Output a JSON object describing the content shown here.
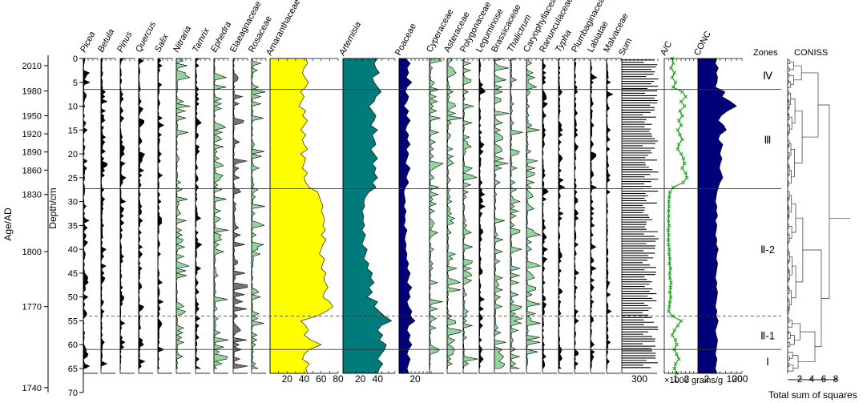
{
  "chart_data": {
    "type": "area",
    "title": "",
    "y_axis_depth": {
      "label": "Depth/cm",
      "range": [
        0,
        70
      ],
      "ticks": [
        0,
        5,
        10,
        15,
        20,
        25,
        30,
        35,
        40,
        45,
        50,
        55,
        60,
        65,
        70
      ]
    },
    "y_axis_age": {
      "label": "Age/AD",
      "ticks": [
        {
          "age": "2010",
          "depth": 1.5
        },
        {
          "age": "1980",
          "depth": 6.8
        },
        {
          "age": "1950",
          "depth": 12.0
        },
        {
          "age": "1920",
          "depth": 15.8
        },
        {
          "age": "1890",
          "depth": 19.6
        },
        {
          "age": "1860",
          "depth": 23.4
        },
        {
          "age": "1830",
          "depth": 28.5
        },
        {
          "age": "1800",
          "depth": 40.5
        },
        {
          "age": "1770",
          "depth": 52.0
        },
        {
          "age": "1740",
          "depth": 69.0
        }
      ]
    },
    "depths": [
      0,
      1,
      2,
      3,
      4,
      5,
      6,
      7,
      8,
      9,
      10,
      11,
      12,
      13,
      14,
      15,
      16,
      17,
      18,
      19,
      20,
      21,
      22,
      23,
      24,
      25,
      26,
      27,
      28,
      29,
      30,
      31,
      32,
      33,
      34,
      35,
      36,
      37,
      38,
      39,
      40,
      41,
      42,
      43,
      44,
      45,
      46,
      47,
      48,
      49,
      50,
      51,
      52,
      53,
      54,
      55,
      56,
      57,
      58,
      59,
      60,
      61,
      62,
      63,
      64,
      65,
      66
    ],
    "series": [
      {
        "name": "Amaranthaceae",
        "italic": false,
        "color": "#ffff00",
        "ticks": [
          20,
          40,
          60,
          80
        ],
        "xmax": 80,
        "values": [
          42,
          44,
          40,
          38,
          41,
          45,
          42,
          36,
          40,
          37,
          34,
          42,
          38,
          44,
          40,
          36,
          42,
          38,
          40,
          44,
          36,
          42,
          40,
          38,
          44,
          40,
          42,
          46,
          56,
          58,
          60,
          62,
          60,
          63,
          64,
          62,
          65,
          60,
          66,
          62,
          60,
          58,
          64,
          62,
          60,
          66,
          63,
          65,
          68,
          64,
          62,
          70,
          74,
          66,
          55,
          36,
          42,
          45,
          40,
          48,
          60,
          46,
          40,
          38,
          46,
          42,
          44
        ]
      },
      {
        "name": "Artemisia",
        "italic": true,
        "color": "#007b7b",
        "ticks": [
          20,
          40
        ],
        "xmax": 60,
        "values": [
          40,
          36,
          38,
          42,
          34,
          36,
          40,
          44,
          38,
          36,
          30,
          34,
          38,
          36,
          32,
          40,
          34,
          36,
          38,
          32,
          36,
          40,
          34,
          38,
          36,
          40,
          34,
          38,
          30,
          26,
          24,
          25,
          22,
          24,
          23,
          25,
          22,
          26,
          24,
          22,
          28,
          26,
          24,
          30,
          28,
          34,
          32,
          36,
          30,
          34,
          28,
          40,
          36,
          42,
          48,
          56,
          44,
          40,
          46,
          42,
          50,
          48,
          44,
          40,
          46,
          42,
          40
        ]
      },
      {
        "name": "Poaceae",
        "italic": false,
        "color": "#00007a",
        "ticks": [
          20
        ],
        "xmax": 40,
        "values": [
          8,
          14,
          10,
          12,
          9,
          16,
          10,
          8,
          12,
          10,
          6,
          12,
          9,
          14,
          10,
          8,
          12,
          10,
          14,
          9,
          12,
          10,
          8,
          14,
          11,
          9,
          12,
          8,
          6,
          7,
          8,
          6,
          9,
          7,
          8,
          6,
          10,
          8,
          7,
          9,
          8,
          10,
          9,
          12,
          10,
          14,
          12,
          10,
          16,
          12,
          14,
          10,
          12,
          16,
          14,
          20,
          12,
          10,
          14,
          12,
          16,
          12,
          10,
          14,
          12,
          10,
          12
        ]
      },
      {
        "name": "A/C",
        "italic": false,
        "color": "#1aa31a",
        "ticks": [
          1,
          2
        ],
        "xmax": 3,
        "values": [
          0.7,
          0.8,
          0.6,
          0.9,
          0.7,
          1.0,
          0.8,
          1.6,
          1.9,
          1.5,
          1.8,
          1.4,
          1.6,
          1.3,
          1.5,
          1.2,
          1.4,
          1.6,
          1.3,
          1.2,
          1.5,
          1.7,
          1.8,
          1.6,
          1.9,
          2.0,
          1.7,
          0.8,
          0.5,
          0.45,
          0.4,
          0.42,
          0.38,
          0.4,
          0.37,
          0.42,
          0.35,
          0.4,
          0.36,
          0.38,
          0.45,
          0.42,
          0.5,
          0.45,
          0.55,
          0.48,
          0.5,
          0.6,
          0.55,
          0.5,
          0.58,
          0.5,
          0.45,
          0.4,
          0.7,
          1.5,
          1.2,
          0.9,
          0.7,
          1.0,
          1.1,
          0.9,
          1.1,
          1.3,
          1.0,
          0.9,
          1.1
        ]
      },
      {
        "name": "CONC",
        "italic": false,
        "color": "#00007a",
        "ticks": [
          2,
          100,
          200
        ],
        "xmax": 260,
        "values": [
          10,
          8,
          12,
          9,
          11,
          10,
          8,
          30,
          20,
          60,
          130,
          40,
          18,
          12,
          25,
          35,
          15,
          12,
          22,
          18,
          15,
          20,
          16,
          14,
          18,
          22,
          15,
          12,
          10,
          9,
          8,
          10,
          9,
          11,
          8,
          10,
          9,
          8,
          10,
          9,
          12,
          10,
          9,
          11,
          10,
          9,
          8,
          10,
          9,
          11,
          10,
          9,
          8,
          10,
          9,
          12,
          10,
          8,
          9,
          11,
          10,
          9,
          8,
          10,
          9,
          8,
          10
        ]
      }
    ],
    "minor_taxa": [
      "Picea",
      "Betula",
      "Pinus",
      "Quercus",
      "Salix",
      "Nitraria",
      "Tamrix",
      "Ephedra",
      "Elaeagnaceae",
      "Rosaceae",
      "Cyperaceae",
      "Asteraceae",
      "Polygonaceae",
      "Leguminose",
      "Brassicaceae",
      "Thalictrum",
      "Caryophyllaceae",
      "Ranunculaceae",
      "Typha",
      "Plumbaginaceae",
      "Labiatae",
      "Malvaceae"
    ],
    "minor_taxa_italic": [
      "Picea",
      "Betula",
      "Pinus",
      "Quercus",
      "Salix",
      "Nitraria",
      "Tamrix",
      "Ephedra",
      "Thalictrum",
      "Typha"
    ],
    "sum": {
      "name": "Sum",
      "tick": "300"
    },
    "conc_unit": "×1000 grains/g",
    "zones": {
      "title": "Zones",
      "boundaries": [
        {
          "depth": 6.5,
          "style": "solid"
        },
        {
          "depth": 27.3,
          "style": "solid"
        },
        {
          "depth": 54.0,
          "style": "dashed"
        },
        {
          "depth": 61.0,
          "style": "solid"
        }
      ],
      "labels": [
        {
          "label": "Ⅳ",
          "depth": 3.5
        },
        {
          "label": "Ⅲ",
          "depth": 17.0
        },
        {
          "label": "Ⅱ-2",
          "depth": 40.0
        },
        {
          "label": "Ⅱ-1",
          "depth": 58.0
        },
        {
          "label": "Ⅰ",
          "depth": 63.5
        }
      ]
    },
    "coniss": {
      "title": "CONISS",
      "xlabel": "Total sum of squares",
      "ticks": [
        "2",
        "4",
        "6",
        "8"
      ]
    }
  }
}
